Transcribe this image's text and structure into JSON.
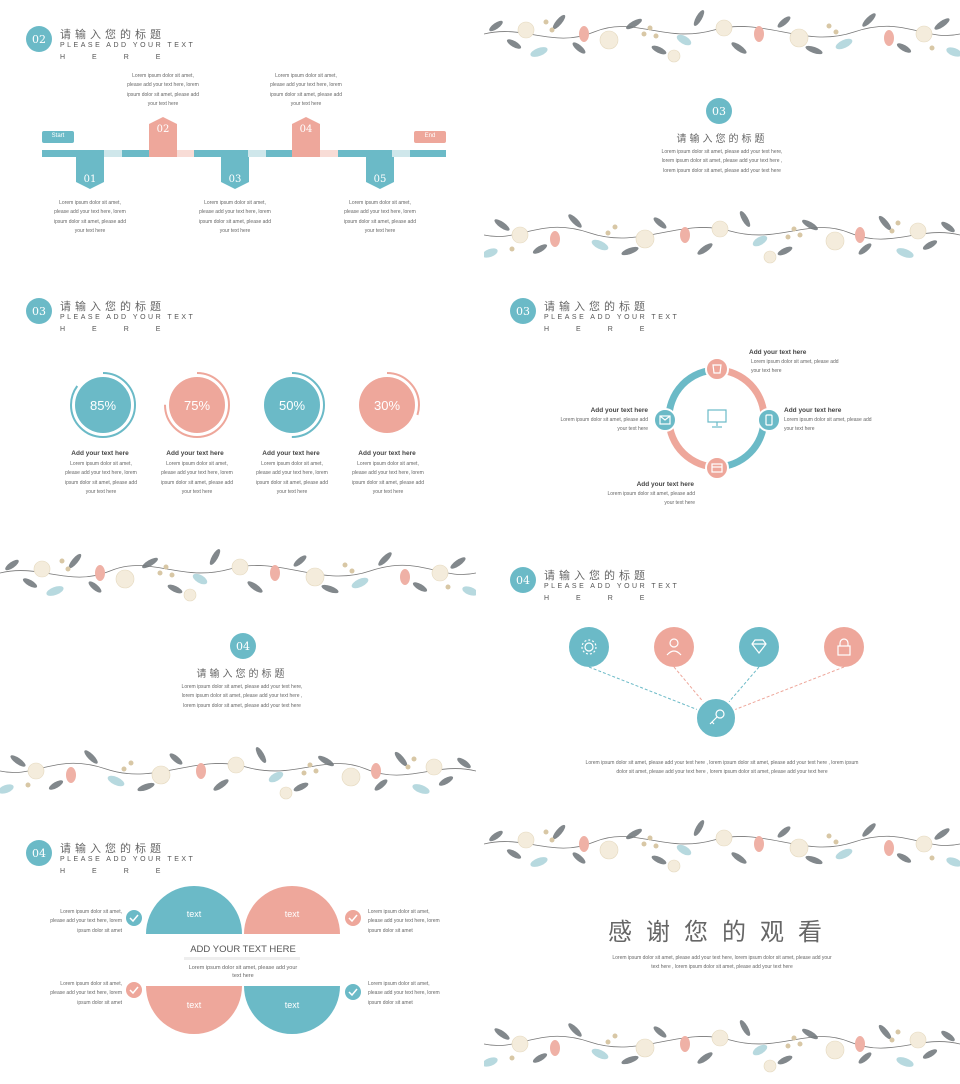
{
  "s1": {
    "num": "02",
    "title": "请输入您的标题",
    "sub": "PLEASE ADD YOUR TEXT",
    "sub2": "HERE",
    "start": "Start",
    "end": "End",
    "steps": [
      "01",
      "02",
      "03",
      "04",
      "05"
    ],
    "text_l1": "Lorem ipsum dolor sit amet,",
    "text_l2": "please add your text here, lorem",
    "text_l3": "ipsum dolor sit amet, please add",
    "text_l4": "your text here"
  },
  "s2": {
    "num": "03",
    "title": "请输入您的标题",
    "l1": "Lorem ipsum dolor sit amet, please add your text here,",
    "l2": "lorem ipsum dolor sit amet, please add your text here ,",
    "l3": "lorem ipsum dolor sit amet, please add your text here"
  },
  "s3": {
    "num": "03",
    "title": "请输入您的标题",
    "sub": "PLEASE ADD YOUR TEXT",
    "sub2": "HERE",
    "items": [
      {
        "pct": "85%",
        "value": 85,
        "color": "#6bbac7"
      },
      {
        "pct": "75%",
        "value": 75,
        "color": "#eea79b"
      },
      {
        "pct": "50%",
        "value": 50,
        "color": "#6bbac7"
      },
      {
        "pct": "30%",
        "value": 30,
        "color": "#eea79b"
      }
    ],
    "cap": "Add your  text here",
    "l1": "Lorem ipsum dolor sit amet,",
    "l2": "please add your text here, lorem",
    "l3": "ipsum dolor sit amet, please add",
    "l4": "your text here"
  },
  "s4": {
    "num": "03",
    "title": "请输入您的标题",
    "sub": "PLEASE ADD YOUR TEXT",
    "sub2": "HERE",
    "cap": "Add your  text here",
    "l1": "Lorem ipsum dolor sit amet, please add",
    "l2": "your text here",
    "icons": [
      "cup-icon",
      "monitor-icon",
      "mail-icon",
      "phone-icon",
      "calendar-icon"
    ]
  },
  "s5": {
    "num": "04",
    "title": "请输入您的标题",
    "l1": "Lorem ipsum dolor sit amet, please add your text here,",
    "l2": "lorem ipsum dolor sit amet, please add your text here ,",
    "l3": "lorem ipsum dolor sit amet, please add your text here"
  },
  "s6": {
    "num": "04",
    "title": "请输入您的标题",
    "sub": "PLEASE ADD YOUR TEXT",
    "sub2": "HERE",
    "icons": [
      "gear-icon",
      "user-icon",
      "diamond-icon",
      "lock-icon",
      "key-icon"
    ],
    "l1": "Lorem ipsum dolor sit amet, please add your text here , lorem ipsum dolor sit amet, please add your text here , lorem ipsum",
    "l2": "dolor sit amet, please add your text here , lorem ipsum dolor sit amet, please add your text here"
  },
  "s7": {
    "num": "04",
    "title": "请输入您的标题",
    "sub": "PLEASE ADD YOUR TEXT",
    "sub2": "HERE",
    "text": "text",
    "heading": "ADD YOUR TEXT HERE",
    "c1": "Lorem ipsum dolor sit amet, please add your",
    "c2": "text here",
    "l1": "Lorem ipsum dolor sit amet,",
    "l2": "please add your text here, lorem",
    "l3": "ipsum dolor sit amet"
  },
  "s8": {
    "title": "感谢您的观看",
    "l1": "Lorem ipsum dolor sit amet, please add your text here, lorem ipsum dolor sit amet, please add your",
    "l2": "text here , lorem ipsum dolor sit amet, please add your text here"
  },
  "colors": {
    "teal": "#6bbac7",
    "salmon": "#eea79b",
    "light_teal": "#cfe7eb",
    "light_salmon": "#f8dcd6"
  }
}
